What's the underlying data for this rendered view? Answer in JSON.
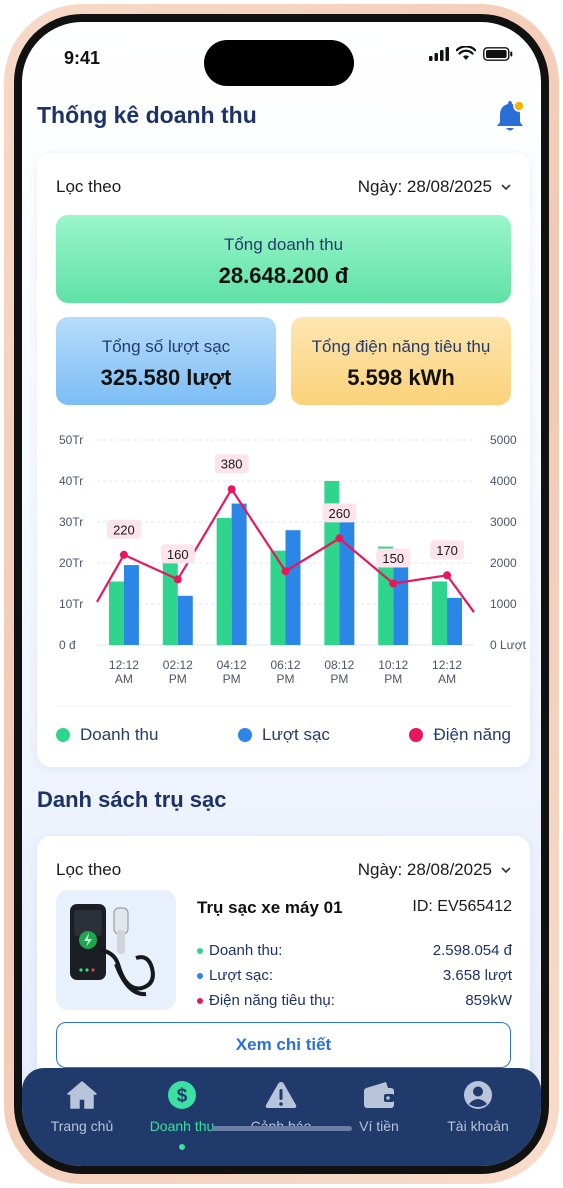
{
  "status": {
    "time": "9:41"
  },
  "header": {
    "title": "Thống kê doanh thu"
  },
  "revenue_card": {
    "filter_label": "Lọc theo",
    "date_label": "Ngày: 28/08/2025",
    "total_revenue": {
      "label": "Tổng doanh thu",
      "value": "28.648.200 đ"
    },
    "total_charges": {
      "label": "Tổng số lượt sạc",
      "value": "325.580 lượt"
    },
    "total_energy": {
      "label": "Tổng điện năng tiêu thụ",
      "value": "5.598 kWh"
    }
  },
  "chart_data": {
    "type": "bar",
    "categories": [
      "12:12\nAM",
      "02:12\nPM",
      "04:12\nPM",
      "06:12\nPM",
      "08:12\nPM",
      "10:12\nPM",
      "12:12\nAM"
    ],
    "left_axis_ticks": [
      "50Tr",
      "40Tr",
      "30Tr",
      "20Tr",
      "10Tr",
      "0 đ"
    ],
    "right_axis_ticks": [
      "5000",
      "4000",
      "3000",
      "2000",
      "1000",
      "0 Lượt"
    ],
    "ylim_left": [
      0,
      50
    ],
    "ylim_right": [
      0,
      5000
    ],
    "series": [
      {
        "name": "Doanh thu",
        "values": [
          15.5,
          24,
          31,
          23,
          40,
          24,
          15.5
        ],
        "color": "#2fd58c"
      },
      {
        "name": "Lượt sạc",
        "values": [
          1950,
          1200,
          3450,
          2800,
          3000,
          2050,
          1150
        ],
        "color": "#2b86e6"
      },
      {
        "name": "Điện năng",
        "line_values": [
          220,
          160,
          380,
          180,
          260,
          150,
          170
        ],
        "labeled": [
          true,
          true,
          true,
          false,
          true,
          true,
          true
        ],
        "color": "#e8175d"
      }
    ],
    "line_start": 1050,
    "line_end": 800
  },
  "legend": [
    {
      "label": "Doanh thu",
      "color": "#2fd58c"
    },
    {
      "label": "Lượt sạc",
      "color": "#2b86e6"
    },
    {
      "label": "Điện năng",
      "color": "#e8175d"
    }
  ],
  "stations": {
    "title": "Danh sách trụ sạc",
    "filter_label": "Lọc theo",
    "date_label": "Ngày: 28/08/2025",
    "item": {
      "name": "Trụ sạc xe máy 01",
      "id": "ID: EV565412",
      "rows": [
        {
          "label": "Doanh thu:",
          "value": "2.598.054 đ",
          "color": "#2fd58c"
        },
        {
          "label": "Lượt sạc:",
          "value": "3.658 lượt",
          "color": "#2b86e6"
        },
        {
          "label": "Điện năng tiêu thụ:",
          "value": "859kW",
          "color": "#e8175d"
        }
      ],
      "detail_button": "Xem chi tiết"
    }
  },
  "tabs": [
    {
      "label": "Trang chủ",
      "icon": "home-icon"
    },
    {
      "label": "Doanh thu",
      "icon": "dollar-icon",
      "active": true
    },
    {
      "label": "Cảnh báo",
      "icon": "warning-icon"
    },
    {
      "label": "Ví tiền",
      "icon": "wallet-icon"
    },
    {
      "label": "Tài khoản",
      "icon": "account-icon"
    }
  ]
}
